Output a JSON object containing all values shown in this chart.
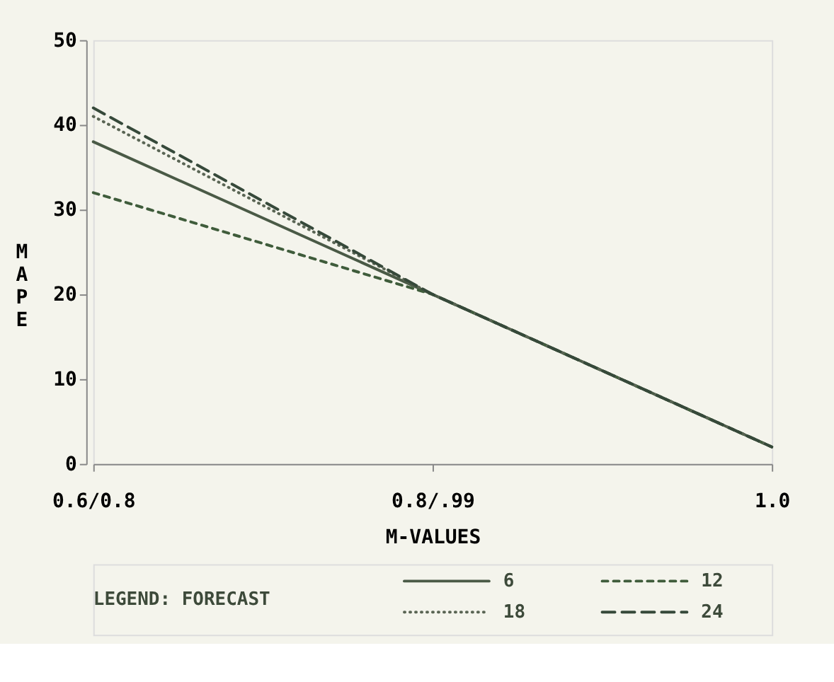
{
  "chart_data": {
    "type": "line",
    "xlabel": "M-VALUES",
    "ylabel": "MAPE",
    "legend_title": "LEGEND: FORECAST",
    "categories": [
      "0.6/0.8",
      "0.8/.99",
      "1.0"
    ],
    "series": [
      {
        "name": "6",
        "color": "#4a5a46",
        "line_style": "solid",
        "values": [
          38,
          20,
          2
        ]
      },
      {
        "name": "12",
        "color": "#3f5c3b",
        "line_style": "dashed",
        "values": [
          32,
          20,
          2
        ]
      },
      {
        "name": "18",
        "color": "#5a6554",
        "line_style": "dotted",
        "values": [
          41,
          20,
          2
        ]
      },
      {
        "name": "24",
        "color": "#36493a",
        "line_style": "longdash",
        "values": [
          42,
          20,
          2
        ]
      }
    ],
    "ylim": [
      0,
      50
    ],
    "yticks": [
      0,
      10,
      20,
      30,
      40,
      50
    ],
    "grid": false,
    "legend": "bottom",
    "marker": "none"
  }
}
